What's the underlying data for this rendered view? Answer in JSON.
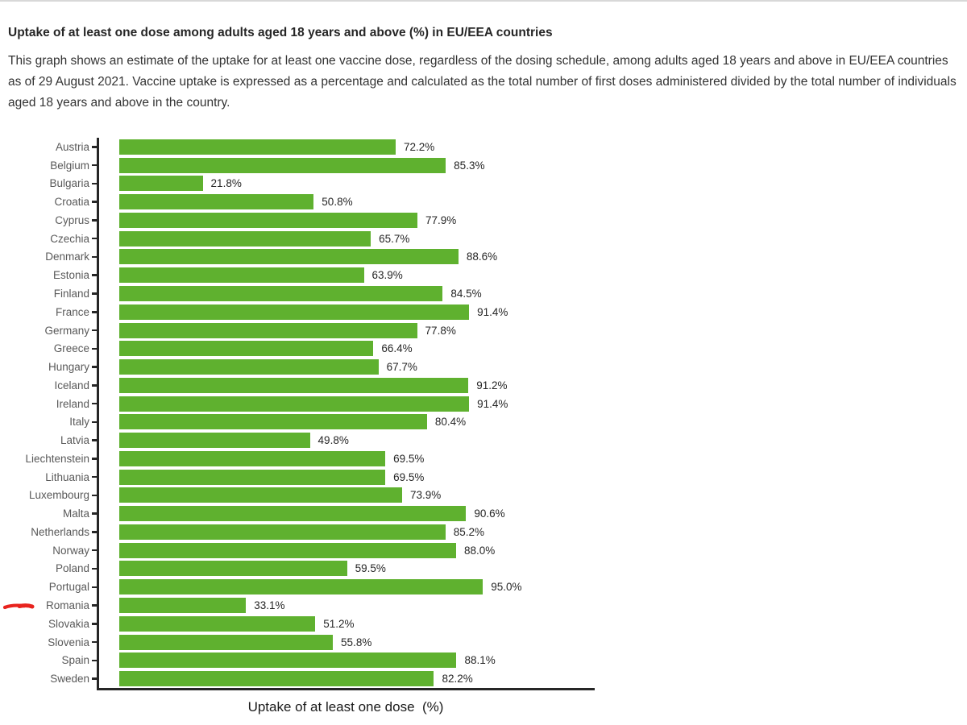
{
  "page": {
    "title": "Uptake of at least one dose among adults aged 18 years and above (%) in EU/EEA countries",
    "description": "This graph shows an estimate of the uptake for at least one vaccine dose, regardless of the dosing schedule, among adults aged 18 years and above in EU/EEA countries as of 29 August 2021. Vaccine uptake is expressed as a percentage and calculated as the total number of first doses administered divided by the total number of individuals aged 18 years and above in the country."
  },
  "chart_data": {
    "type": "bar",
    "orientation": "horizontal",
    "title": "",
    "xlabel": "Uptake of at least one dose  (%)",
    "ylabel": "",
    "xlim": [
      0,
      100
    ],
    "grid": false,
    "legend": null,
    "bar_color": "#5fb12f",
    "axis_color": "#262626",
    "label_color": "#595959",
    "value_label_suffix": "%",
    "categories": [
      "Austria",
      "Belgium",
      "Bulgaria",
      "Croatia",
      "Cyprus",
      "Czechia",
      "Denmark",
      "Estonia",
      "Finland",
      "France",
      "Germany",
      "Greece",
      "Hungary",
      "Iceland",
      "Ireland",
      "Italy",
      "Latvia",
      "Liechtenstein",
      "Lithuania",
      "Luxembourg",
      "Malta",
      "Netherlands",
      "Norway",
      "Poland",
      "Portugal",
      "Romania",
      "Slovakia",
      "Slovenia",
      "Spain",
      "Sweden"
    ],
    "values": [
      72.2,
      85.3,
      21.8,
      50.8,
      77.9,
      65.7,
      88.6,
      63.9,
      84.5,
      91.4,
      77.8,
      66.4,
      67.7,
      91.2,
      91.4,
      80.4,
      49.8,
      69.5,
      69.5,
      73.9,
      90.6,
      85.2,
      88.0,
      59.5,
      95.0,
      33.1,
      51.2,
      55.8,
      88.1,
      82.2
    ],
    "annotation": {
      "type": "red-underline-marker",
      "target": "Romania",
      "color": "#e8231e"
    }
  }
}
